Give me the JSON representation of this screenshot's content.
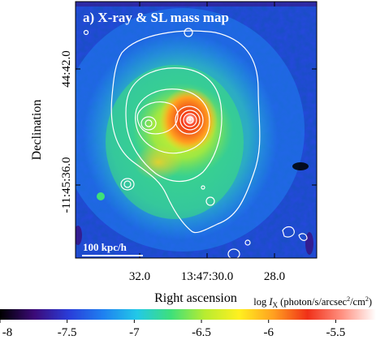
{
  "chart_data": {
    "type": "heatmap",
    "title": "a) X-ray & SL mass map",
    "xlabel": "Right ascension",
    "ylabel": "Declination",
    "x_ticks": [
      "32.0",
      "13:47:30.0",
      "28.0"
    ],
    "y_ticks": [
      "44:42.0",
      "-11:45:36.0"
    ],
    "scale_bar_label": "100 kpc/h",
    "colorbar": {
      "label_prefix": "log ",
      "label_var": "I",
      "label_sub": "X",
      "label_units": " (photon/s/arcsec",
      "label_sup": "2",
      "label_end": "/cm",
      "label_sup2": "2",
      "label_close": ")",
      "ticks": [
        "-8",
        "-7.5",
        "-7",
        "-6.5",
        "-6",
        "-5.5"
      ],
      "tick_values": [
        -8,
        -7.5,
        -7,
        -6.5,
        -6,
        -5.5
      ],
      "range": [
        -8,
        -5.2
      ],
      "colormap": [
        "#000000",
        "#3c0a78",
        "#2a3cd8",
        "#1f7ff0",
        "#22c8e8",
        "#3ee07a",
        "#b8ec30",
        "#fff020",
        "#ffa020",
        "#f03018",
        "#ff9080",
        "#ffffff"
      ]
    },
    "contour_color": "#ffffff"
  }
}
